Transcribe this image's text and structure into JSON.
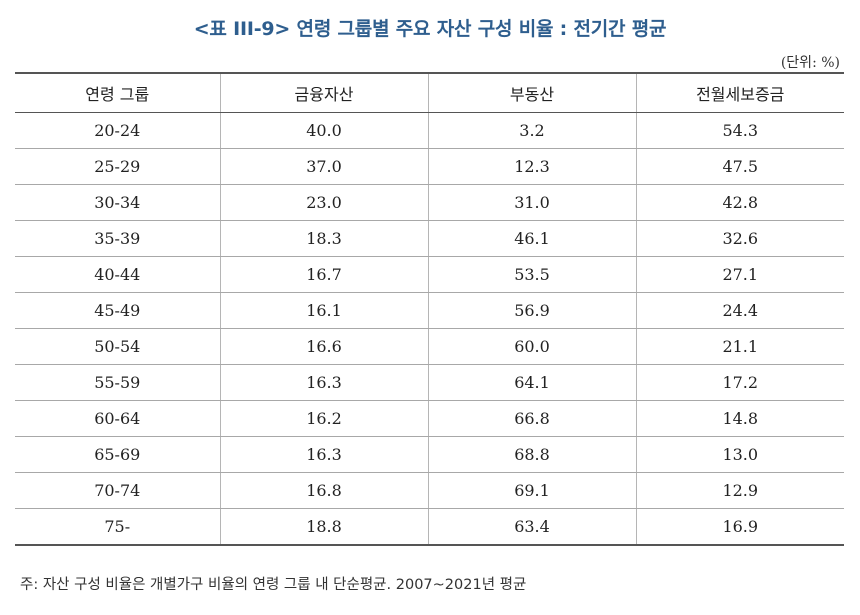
{
  "title": "<표 III-9> 연령 그룹별 주요 자산 구성 비율 : 전기간 평균",
  "unit": "(단위: %)",
  "table": {
    "headers": [
      "연령 그룹",
      "금융자산",
      "부동산",
      "전월세보증금"
    ],
    "rows": [
      [
        "20-24",
        "40.0",
        "3.2",
        "54.3"
      ],
      [
        "25-29",
        "37.0",
        "12.3",
        "47.5"
      ],
      [
        "30-34",
        "23.0",
        "31.0",
        "42.8"
      ],
      [
        "35-39",
        "18.3",
        "46.1",
        "32.6"
      ],
      [
        "40-44",
        "16.7",
        "53.5",
        "27.1"
      ],
      [
        "45-49",
        "16.1",
        "56.9",
        "24.4"
      ],
      [
        "50-54",
        "16.6",
        "60.0",
        "21.1"
      ],
      [
        "55-59",
        "16.3",
        "64.1",
        "17.2"
      ],
      [
        "60-64",
        "16.2",
        "66.8",
        "14.8"
      ],
      [
        "65-69",
        "16.3",
        "68.8",
        "13.0"
      ],
      [
        "70-74",
        "16.8",
        "69.1",
        "12.9"
      ],
      [
        "75-",
        "18.8",
        "63.4",
        "16.9"
      ]
    ]
  },
  "note": "주: 자산 구성 비율은 개별가구 비율의 연령 그룹 내 단순평균. 2007~2021년 평균",
  "colors": {
    "title": "#2e5e8e",
    "rule": "#555555",
    "divider": "#a8a8a8"
  }
}
